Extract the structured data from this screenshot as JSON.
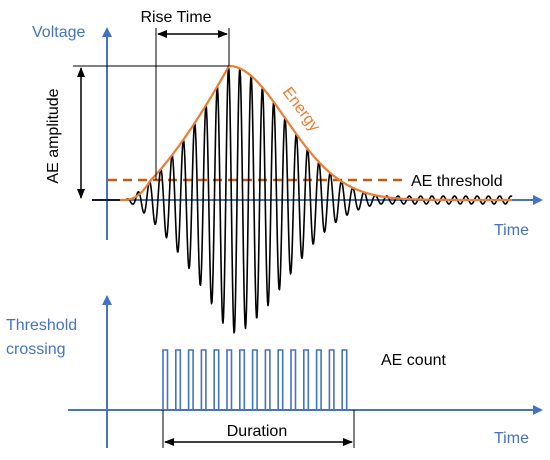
{
  "labels": {
    "voltage_axis": "Voltage",
    "time_axis_top": "Time",
    "threshold_crossing_line1": "Threshold",
    "threshold_crossing_line2": "crossing",
    "time_axis_bottom": "Time",
    "rise_time": "Rise Time",
    "ae_amplitude": "AE amplitude",
    "energy": "Energy",
    "ae_threshold": "AE threshold",
    "ae_count": "AE count",
    "duration": "Duration"
  },
  "colors": {
    "axis": "#4472C4",
    "signal": "#000000",
    "envelope": "#ED7D31",
    "threshold_line": "#C55A11",
    "pulses": "#4472C4",
    "annotation": "#000000"
  },
  "icons": {
    "axis_arrow": "triangle-arrow-icon",
    "dimension_arrow": "double-headed-arrow-icon"
  }
}
